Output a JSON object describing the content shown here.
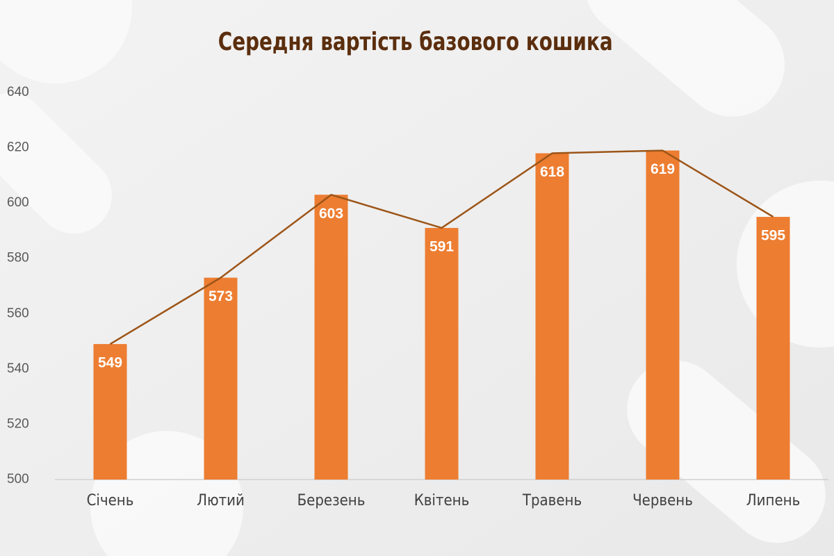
{
  "chart_data": {
    "type": "bar",
    "title": "Середня вартість базового кошика",
    "categories": [
      "Січень",
      "Лютий",
      "Березень",
      "Квітень",
      "Травень",
      "Червень",
      "Липень"
    ],
    "values": [
      549,
      573,
      603,
      591,
      618,
      619,
      595
    ],
    "color": "#ed7d31",
    "line_color": "#9c5518",
    "title_color": "#5b2e0e",
    "ylim": [
      500,
      640
    ],
    "yticks": [
      500,
      520,
      540,
      560,
      580,
      600,
      620,
      640
    ]
  }
}
